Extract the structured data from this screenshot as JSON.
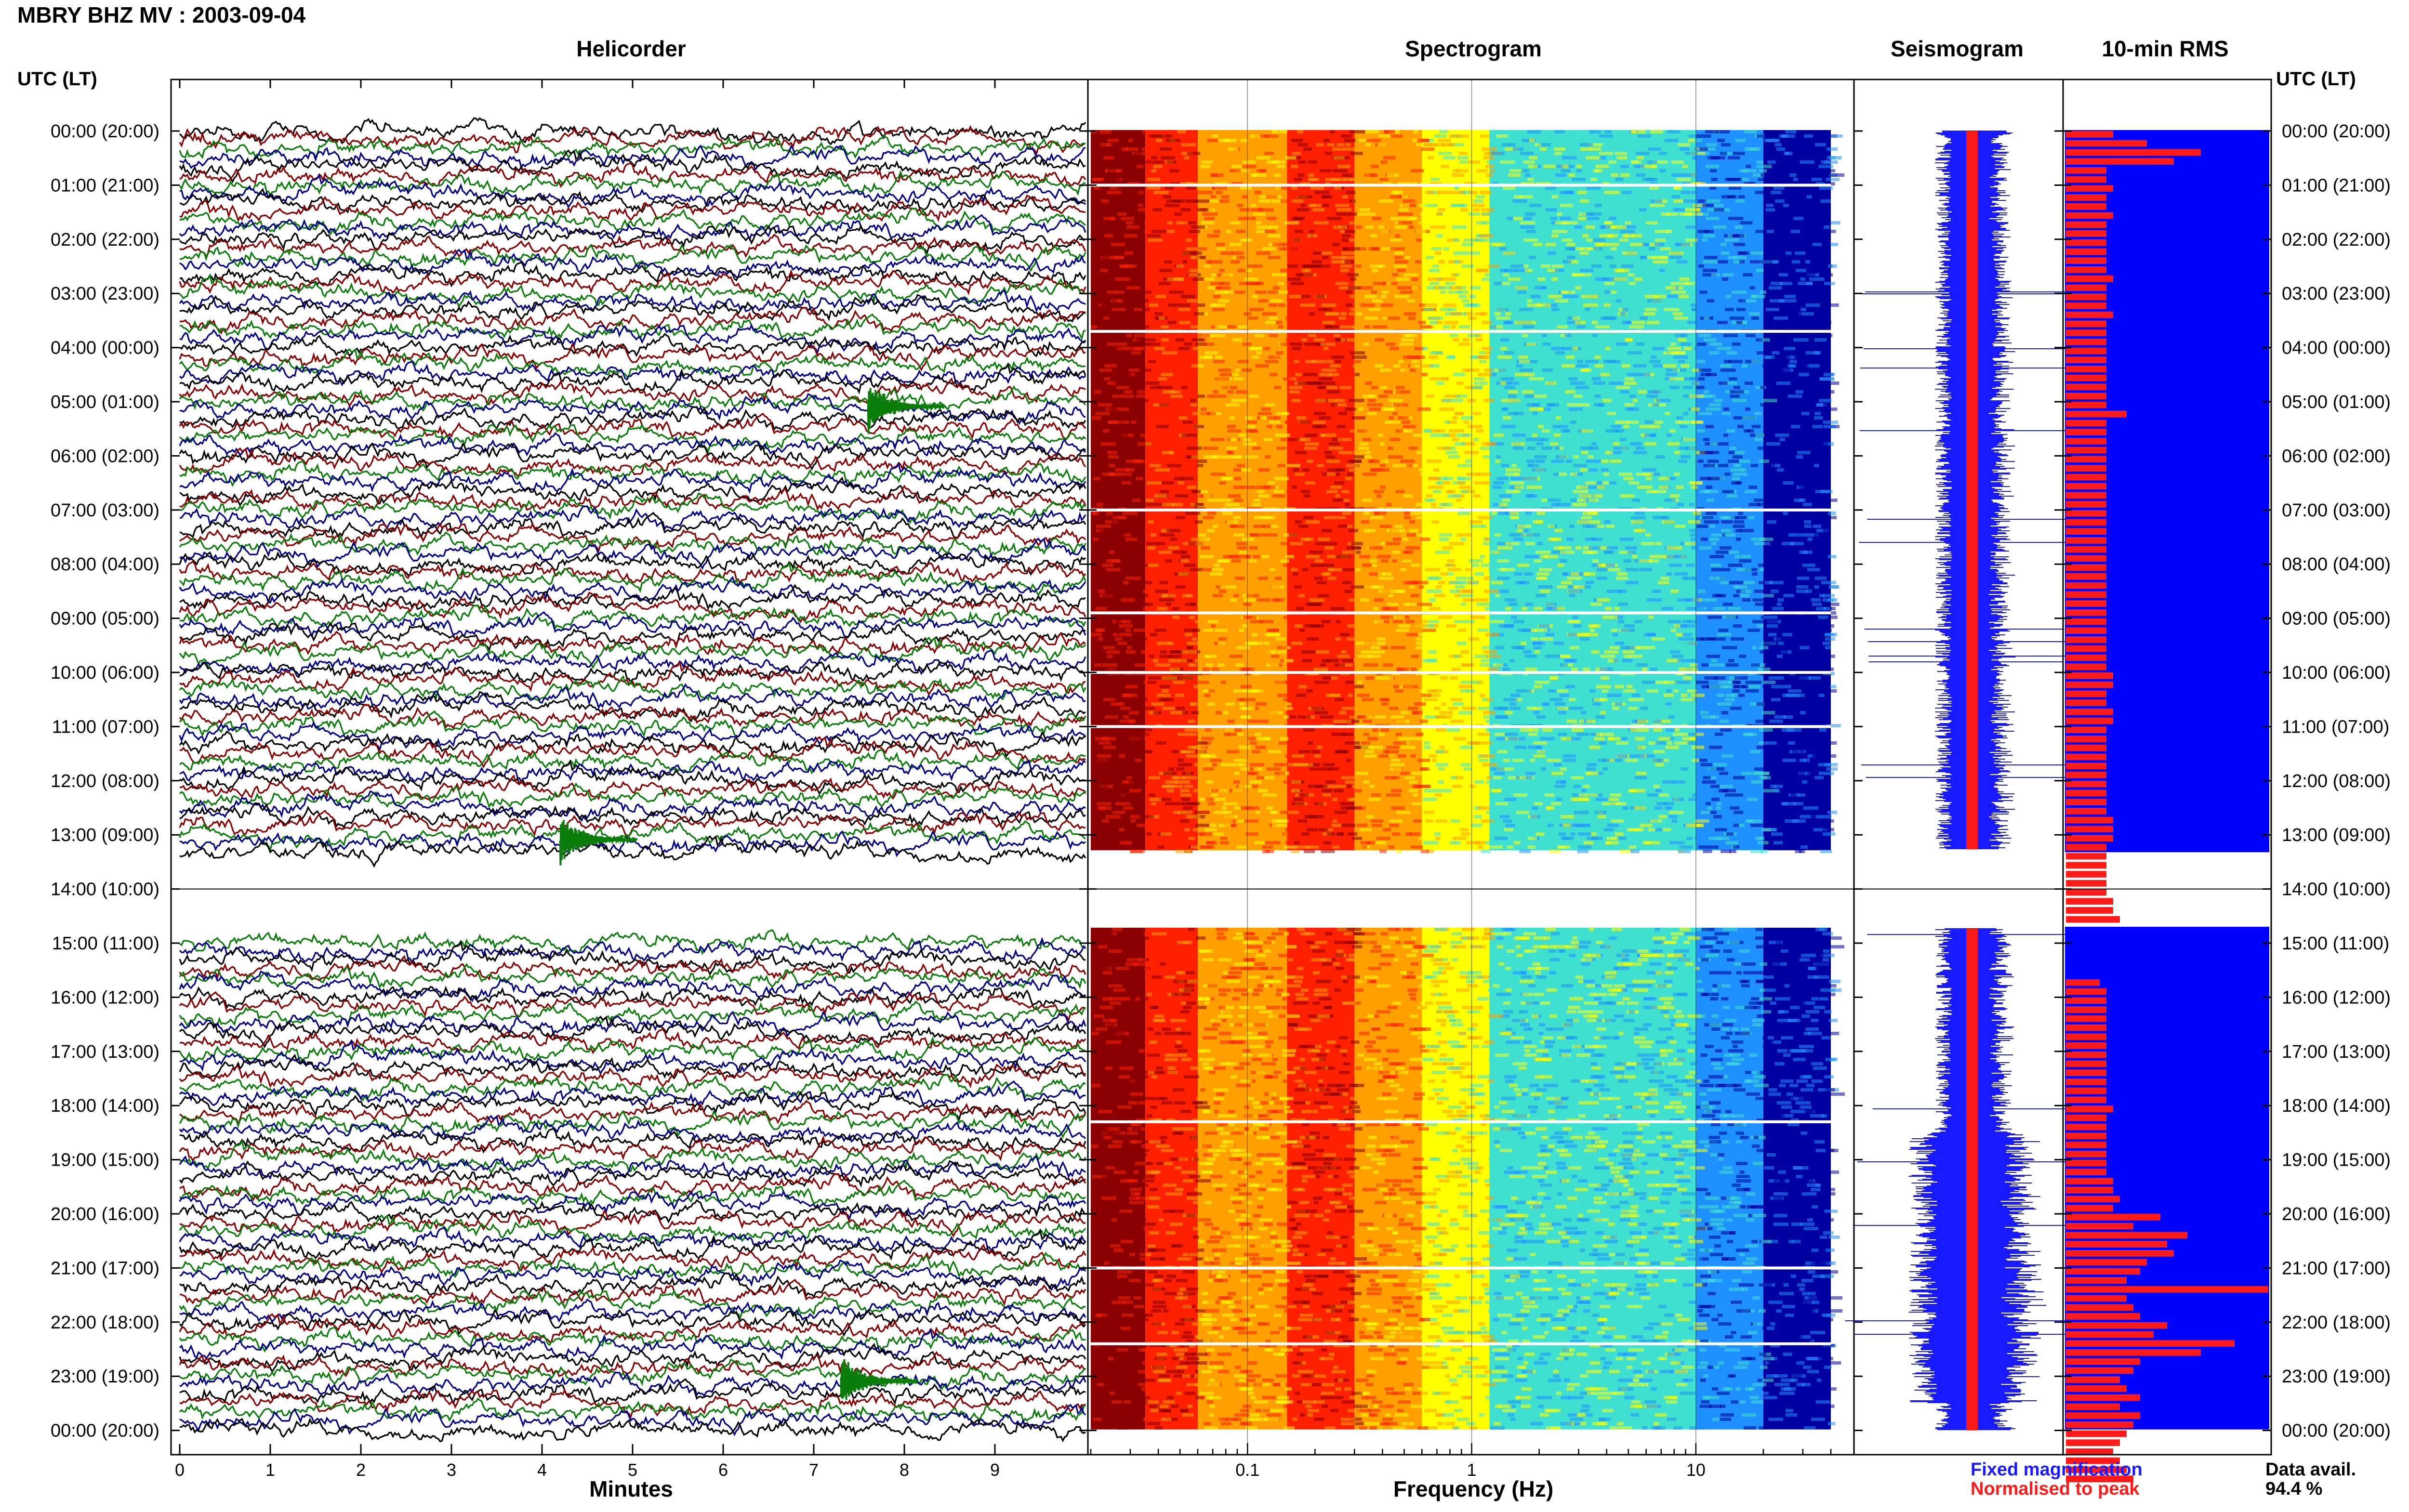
{
  "header": {
    "title": "MBRY BHZ MV : 2003-09-04"
  },
  "panels": {
    "helicorder": "Helicorder",
    "spectrogram": "Spectrogram",
    "seismogram": "Seismogram",
    "rms": "10-min RMS"
  },
  "time_axis_label": "UTC (LT)",
  "row_labels": [
    "00:00 (20:00)",
    "01:00 (21:00)",
    "02:00 (22:00)",
    "03:00 (23:00)",
    "04:00 (00:00)",
    "05:00 (01:00)",
    "06:00 (02:00)",
    "07:00 (03:00)",
    "08:00 (04:00)",
    "09:00 (05:00)",
    "10:00 (06:00)",
    "11:00 (07:00)",
    "12:00 (08:00)",
    "13:00 (09:00)",
    "14:00 (10:00)",
    "15:00 (11:00)",
    "16:00 (12:00)",
    "17:00 (13:00)",
    "18:00 (14:00)",
    "19:00 (15:00)",
    "20:00 (16:00)",
    "21:00 (17:00)",
    "22:00 (18:00)",
    "23:00 (19:00)",
    "00:00 (20:00)"
  ],
  "x_axes": {
    "minutes_label": "Minutes",
    "minutes_ticks": [
      "0",
      "1",
      "2",
      "3",
      "4",
      "5",
      "6",
      "7",
      "8",
      "9"
    ],
    "frequency_label": "Frequency (Hz)",
    "frequency_ticks": [
      "0.1",
      "1",
      "10"
    ]
  },
  "legend": {
    "fixed": "Fixed magnification",
    "normalised": "Normalised to peak",
    "fixed_color": "#1a1aff",
    "normalised_color": "#ff1a1a"
  },
  "data_avail": {
    "label": "Data avail.",
    "value": "94.4 %"
  },
  "colors": {
    "helicorder_traces": [
      "#000000",
      "#8b0000",
      "#0b7d0b",
      "#00008b"
    ],
    "spectrogram": [
      "#8b0000",
      "#ff2000",
      "#ffa000",
      "#ffff00",
      "#40e0d0",
      "#1e90ff",
      "#0000a0"
    ],
    "seismogram_fixed": "#1a1aff",
    "seismogram_normalised": "#ff1a1a",
    "rms_bar": "#ff1a1a",
    "rms_background": "#0000ff"
  },
  "chart_data": [
    {
      "type": "line",
      "panel": "helicorder",
      "x_unit": "minutes",
      "xlim": [
        0,
        10
      ],
      "lines_per_hour": 6,
      "data_gap_hours": [
        14
      ],
      "events": [
        {
          "hour": 5.0,
          "minute": 7.6
        },
        {
          "hour": 13.0,
          "minute": 4.2
        },
        {
          "hour": 23.0,
          "minute": 7.3
        }
      ]
    },
    {
      "type": "heatmap",
      "panel": "spectrogram",
      "x_scale": "log",
      "xlim": [
        0.02,
        40
      ],
      "data_gap_hours": [
        14
      ],
      "gap_lines_hours": [
        1.0,
        3.7,
        7.0,
        8.9,
        10.0,
        11.0,
        18.3,
        21.0,
        22.4
      ]
    },
    {
      "type": "bar",
      "panel": "10-min RMS",
      "bins_per_hour": 6,
      "data_gap_hours": [
        14
      ],
      "values": [
        0.35,
        0.6,
        1.0,
        0.8,
        0.3,
        0.3,
        0.35,
        0.3,
        0.3,
        0.35,
        0.3,
        0.3,
        0.3,
        0.3,
        0.3,
        0.3,
        0.35,
        0.3,
        0.3,
        0.3,
        0.35,
        0.3,
        0.3,
        0.3,
        0.3,
        0.3,
        0.3,
        0.3,
        0.3,
        0.3,
        0.3,
        0.45,
        0.3,
        0.3,
        0.3,
        0.3,
        0.3,
        0.3,
        0.3,
        0.3,
        0.3,
        0.3,
        0.3,
        0.3,
        0.3,
        0.3,
        0.3,
        0.3,
        0.3,
        0.3,
        0.3,
        0.3,
        0.3,
        0.3,
        0.3,
        0.3,
        0.3,
        0.3,
        0.3,
        0.3,
        0.35,
        0.35,
        0.3,
        0.3,
        0.35,
        0.35,
        0.3,
        0.3,
        0.3,
        0.3,
        0.3,
        0.3,
        0.3,
        0.3,
        0.3,
        0.3,
        0.35,
        0.35,
        0.35,
        0.3,
        0.3,
        0.3,
        0.3,
        0.3,
        0.3,
        0.35,
        0.35,
        0.4,
        0.0,
        0.0,
        0.0,
        0.0,
        0.0,
        0.0,
        0.25,
        0.3,
        0.3,
        0.3,
        0.3,
        0.3,
        0.3,
        0.3,
        0.3,
        0.3,
        0.3,
        0.3,
        0.3,
        0.3,
        0.35,
        0.3,
        0.3,
        0.3,
        0.3,
        0.3,
        0.3,
        0.3,
        0.35,
        0.35,
        0.4,
        0.35,
        0.7,
        0.5,
        0.9,
        0.75,
        0.8,
        0.6,
        0.55,
        0.45,
        1.5,
        0.45,
        0.5,
        0.55,
        0.75,
        0.65,
        1.25,
        1.0,
        0.55,
        0.5,
        0.4,
        0.45,
        0.55,
        0.4,
        0.55,
        0.5,
        0.45,
        0.4,
        0.35,
        0.4,
        0.45,
        0.5
      ]
    },
    {
      "type": "line",
      "panel": "seismogram",
      "series": [
        {
          "name": "Fixed magnification"
        },
        {
          "name": "Normalised to peak"
        }
      ],
      "data_gap_hours": [
        14
      ],
      "high_activity_hours": [
        19,
        20,
        21,
        22,
        23
      ]
    }
  ]
}
